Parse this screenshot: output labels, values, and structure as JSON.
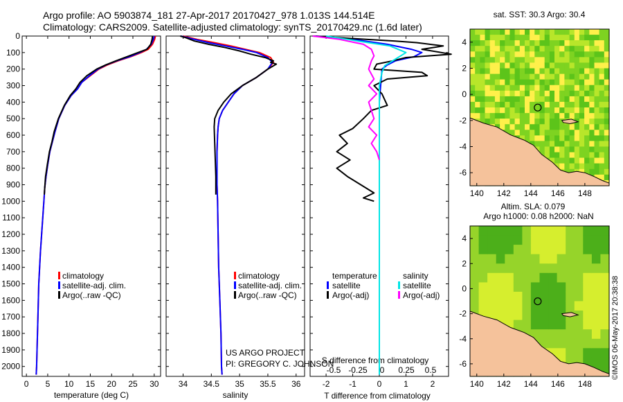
{
  "header": {
    "line1": "Argo profile: AO 5903874_181 27-Apr-2017 20170427_978 1.013S 144.514E",
    "line2": "Climatology: CARS2009. Satellite-adjusted climatology: synTS_20170429.nc (1.6d later)"
  },
  "colors": {
    "climatology": "#ff0000",
    "satellite": "#0000ff",
    "argo": "#000000",
    "salinity_satellite": "#00e5e5",
    "salinity_argo": "#ff00ff",
    "land": "#f5c29b",
    "sea_green": "#7ed321",
    "sea_yellow": "#ffeb3b"
  },
  "legend_profiles": [
    "climatology",
    "satellite-adj. clim.",
    "Argo(..raw -QC)"
  ],
  "legend_diff": {
    "temp_header": "temperature",
    "sal_header": "salinity",
    "temp_items": [
      "satellite",
      "Argo(-adj)"
    ],
    "sal_items": [
      "satellite",
      "Argo(-adj)"
    ]
  },
  "credits": {
    "line1": "US ARGO PROJECT",
    "line2": "PI: GREGORY C. JOHNSON"
  },
  "watermark": "©IMOS 06-May-2017 20:38:38",
  "chart_data": [
    {
      "type": "line",
      "panel": "temperature",
      "xlabel": "temperature (deg C)",
      "ylabel": "",
      "xlim": [
        -1,
        31.5
      ],
      "ylim": [
        2060,
        0
      ],
      "xticks": [
        0,
        5,
        10,
        15,
        20,
        25,
        30
      ],
      "yticks": [
        0,
        100,
        200,
        300,
        400,
        500,
        600,
        700,
        800,
        900,
        1000,
        1100,
        1200,
        1300,
        1400,
        1500,
        1600,
        1700,
        1800,
        1900,
        2000
      ],
      "series": [
        {
          "name": "climatology",
          "color": "#ff0000",
          "x": [
            30.3,
            30.1,
            29.6,
            28.6,
            27.0,
            24.5,
            21.5,
            19.0,
            17.0,
            15.0,
            13.0,
            12.0,
            10.5,
            9.0,
            7.6,
            6.7,
            6.1,
            5.5,
            5.0,
            4.6,
            4.3,
            4.1,
            3.3,
            2.9,
            2.7,
            2.5,
            2.4,
            2.3
          ],
          "y": [
            0,
            20,
            50,
            80,
            100,
            125,
            150,
            175,
            200,
            240,
            280,
            320,
            360,
            420,
            500,
            580,
            640,
            700,
            780,
            850,
            920,
            1000,
            1300,
            1500,
            1700,
            1900,
            2000,
            2050
          ]
        },
        {
          "name": "satellite-adj. clim.",
          "color": "#0000ff",
          "x": [
            30.0,
            29.8,
            29.3,
            28.2,
            26.6,
            24.2,
            21.2,
            18.7,
            16.8,
            14.8,
            13.0,
            12.0,
            10.5,
            9.0,
            7.6,
            6.7,
            6.1,
            5.5,
            5.0,
            4.6,
            4.3,
            4.1,
            3.3,
            2.9,
            2.7,
            2.5,
            2.4,
            2.3
          ],
          "y": [
            0,
            20,
            50,
            80,
            100,
            125,
            150,
            175,
            200,
            240,
            280,
            320,
            360,
            420,
            500,
            580,
            640,
            700,
            780,
            850,
            920,
            1000,
            1300,
            1500,
            1700,
            1900,
            2000,
            2050
          ]
        },
        {
          "name": "Argo(..raw -QC)",
          "color": "#000000",
          "x": [
            29.6,
            29.5,
            29.2,
            28.3,
            26.2,
            23.6,
            21.0,
            18.6,
            16.5,
            14.2,
            12.6,
            11.6,
            10.3,
            8.9,
            7.5,
            6.5,
            6.0,
            5.4,
            4.9,
            4.5,
            4.3,
            4.2
          ],
          "y": [
            0,
            20,
            50,
            80,
            100,
            125,
            150,
            175,
            200,
            240,
            280,
            320,
            360,
            420,
            500,
            580,
            640,
            700,
            780,
            850,
            920,
            960
          ]
        }
      ],
      "legend": [
        "climatology",
        "satellite-adj. clim.",
        "Argo(..raw -QC)"
      ]
    },
    {
      "type": "line",
      "panel": "salinity",
      "xlabel": "salinity",
      "ylabel": "",
      "xlim": [
        33.7,
        36.15
      ],
      "ylim": [
        2060,
        0
      ],
      "xticks": [
        34,
        34.5,
        35,
        35.5,
        36
      ],
      "series": [
        {
          "name": "climatology",
          "color": "#ff0000",
          "x": [
            34.0,
            34.25,
            34.55,
            34.85,
            35.1,
            35.35,
            35.55,
            35.6,
            35.5,
            35.3,
            35.05,
            34.9,
            34.8,
            34.7,
            34.64,
            34.62,
            34.61,
            34.6,
            34.6,
            34.6,
            34.61,
            34.62,
            34.63,
            34.65,
            34.67,
            34.68,
            34.69
          ],
          "y": [
            0,
            20,
            40,
            60,
            80,
            100,
            130,
            160,
            200,
            250,
            300,
            350,
            400,
            450,
            500,
            550,
            600,
            700,
            800,
            900,
            1000,
            1200,
            1400,
            1600,
            1800,
            2000,
            2050
          ]
        },
        {
          "name": "satellite-adj. clim.",
          "color": "#0000ff",
          "x": [
            33.96,
            34.2,
            34.45,
            34.75,
            35.05,
            35.3,
            35.5,
            35.58,
            35.5,
            35.3,
            35.05,
            34.9,
            34.8,
            34.7,
            34.64,
            34.62,
            34.61,
            34.6,
            34.6,
            34.6,
            34.61,
            34.62,
            34.63,
            34.65,
            34.67,
            34.68,
            34.69
          ],
          "y": [
            0,
            20,
            40,
            60,
            80,
            100,
            130,
            160,
            200,
            250,
            300,
            350,
            400,
            450,
            500,
            550,
            600,
            700,
            800,
            900,
            1000,
            1200,
            1400,
            1600,
            1800,
            2000,
            2050
          ]
        },
        {
          "name": "Argo(..raw -QC)",
          "color": "#000000",
          "x": [
            33.95,
            34.05,
            34.2,
            34.45,
            34.75,
            35.0,
            35.2,
            35.45,
            35.6,
            35.55,
            35.65,
            35.5,
            35.3,
            35.05,
            34.85,
            34.72,
            34.62,
            34.56,
            34.55,
            34.56,
            34.57,
            34.58,
            34.58
          ],
          "y": [
            0,
            10,
            30,
            50,
            70,
            90,
            110,
            130,
            150,
            160,
            170,
            200,
            250,
            300,
            350,
            400,
            450,
            500,
            550,
            650,
            750,
            850,
            960
          ]
        }
      ],
      "legend": [
        "climatology",
        "satellite-adj. clim.",
        "Argo(..raw -QC)"
      ]
    },
    {
      "type": "line",
      "panel": "differences",
      "xlabel": "T difference from climatology",
      "xlabel_top": "S difference from climatology",
      "xlim": [
        -2.6,
        2.6
      ],
      "ylim": [
        2060,
        0
      ],
      "xticks": [
        -2,
        -1,
        0,
        1,
        2
      ],
      "xticks_salinity": [
        "-0.5",
        "-0.25",
        "0",
        "0.25",
        "0.5"
      ],
      "series": [
        {
          "name": "T satellite",
          "color": "#0000ff",
          "x": [
            -2.4,
            -1.0,
            0.3,
            1.2,
            1.6,
            1.3,
            0.6,
            0.3,
            0.1,
            0.05,
            0,
            0,
            0,
            0,
            0,
            0
          ],
          "y": [
            0,
            20,
            50,
            80,
            100,
            125,
            150,
            175,
            200,
            300,
            400,
            600,
            800,
            1000,
            1500,
            2050
          ]
        },
        {
          "name": "T Argo(-adj)",
          "color": "#000000",
          "x": [
            -2.5,
            -1.5,
            -0.5,
            0.6,
            1.4,
            2.4,
            1.6,
            2.7,
            1.0,
            0.5,
            -0.1,
            -0.2,
            1.6,
            1.8,
            0.3,
            -0.2,
            0.1,
            0.3,
            -0.3,
            -0.6,
            -1.0,
            -1.5,
            -1.2,
            -1.6,
            -1.1,
            -1.6,
            -1.2,
            -0.7,
            -0.2,
            -0.6,
            -0.2
          ],
          "y": [
            0,
            10,
            20,
            30,
            40,
            60,
            80,
            110,
            130,
            150,
            170,
            200,
            220,
            240,
            260,
            300,
            350,
            420,
            450,
            500,
            560,
            600,
            650,
            700,
            750,
            800,
            850,
            900,
            950,
            980,
            1000
          ]
        },
        {
          "name": "S satellite",
          "color": "#00e5e5",
          "x": [
            -2.0,
            -0.8,
            0.4,
            1.0,
            0.6,
            0.2,
            0.1,
            0,
            0,
            0,
            0,
            0,
            0
          ],
          "y": [
            0,
            30,
            60,
            100,
            140,
            180,
            220,
            300,
            400,
            600,
            800,
            1200,
            2050
          ]
        },
        {
          "name": "S Argo(-adj)",
          "color": "#ff00ff",
          "x": [
            -2.5,
            -1.5,
            -0.6,
            -0.3,
            -0.2,
            -0.3,
            -0.4,
            -0.2,
            -0.4,
            -0.1,
            -0.4,
            -0.3,
            -0.2,
            -0.4,
            -0.1,
            -0.3,
            -0.1,
            0
          ],
          "y": [
            0,
            20,
            50,
            80,
            120,
            150,
            200,
            260,
            300,
            350,
            400,
            450,
            500,
            550,
            600,
            650,
            700,
            750
          ]
        }
      ],
      "legend": [
        "satellite",
        "Argo(-adj)",
        "satellite",
        "Argo(-adj)"
      ]
    },
    {
      "type": "heatmap",
      "panel": "sst_map",
      "title": "sat. SST: 30.3 Argo: 30.4",
      "xlim": [
        139.5,
        149.8
      ],
      "ylim": [
        -7.0,
        5.0
      ],
      "xticks": [
        140,
        142,
        144,
        146,
        148
      ],
      "yticks": [
        -6,
        -4,
        -2,
        0,
        2,
        4
      ],
      "argo_lon": 144.514,
      "argo_lat": -1.013
    },
    {
      "type": "heatmap",
      "panel": "sla_map",
      "title": "Altim. SLA: 0.079",
      "subtitle": "Argo h1000: 0.08 h2000: NaN",
      "xlim": [
        139.5,
        149.8
      ],
      "ylim": [
        -7.0,
        5.0
      ],
      "xticks": [
        140,
        142,
        144,
        146,
        148
      ],
      "yticks": [
        -6,
        -4,
        -2,
        0,
        2,
        4
      ],
      "argo_lon": 144.514,
      "argo_lat": -1.013
    }
  ]
}
